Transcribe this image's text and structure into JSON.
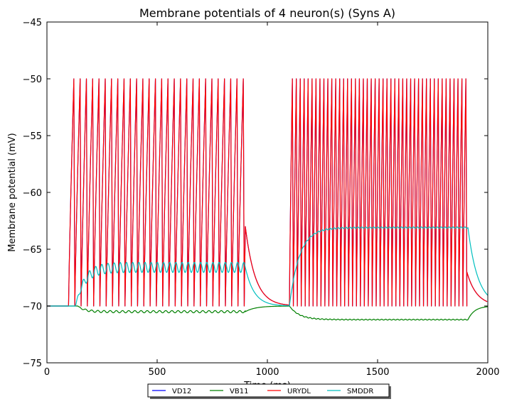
{
  "chart_data": {
    "type": "line",
    "title": "Membrane potentials of 4 neuron(s) (Syns A)",
    "xlabel": "Time (ms)",
    "ylabel": "Membrane potential (mV)",
    "xlim": [
      0,
      2000
    ],
    "ylim": [
      -75,
      -45
    ],
    "x_ticks": [
      0,
      500,
      1000,
      1500,
      2000
    ],
    "y_ticks": [
      -45,
      -50,
      -55,
      -60,
      -65,
      -70,
      -75
    ],
    "x_tick_labels": [
      "0",
      "500",
      "1000",
      "1500",
      "2000"
    ],
    "y_tick_labels": [
      "−45",
      "−50",
      "−55",
      "−60",
      "−65",
      "−70",
      "−75"
    ],
    "grid": false,
    "legend_position": "bottom-center",
    "series": [
      {
        "name": "VD12",
        "color": "#0000ff",
        "baseline_mv": -70,
        "spike_trains": [
          {
            "start_ms": 98,
            "end_ms": 895,
            "count": 28,
            "rise_fraction": 0.85,
            "peak_mv": -50,
            "reset_mv": -70
          },
          {
            "start_ms": 1100,
            "end_ms": 1905,
            "count": 45,
            "rise_fraction": 0.75,
            "peak_mv": -50,
            "reset_mv": -70
          }
        ],
        "after_spike_decays": [
          {
            "t_ms": 900,
            "v_mv": -63,
            "tau_ms": 45
          },
          {
            "t_ms": 1905,
            "v_mv": -67,
            "tau_ms": 45
          }
        ]
      },
      {
        "name": "VB11",
        "color": "#008000",
        "segments": [
          {
            "t0_ms": 0,
            "t1_ms": 140,
            "v0_mv": -70,
            "v1_mv": -70,
            "tau_ms": 1
          },
          {
            "t0_ms": 140,
            "t1_ms": 900,
            "v0_mv": -70,
            "v1_mv": -70.5,
            "tau_ms": 30,
            "ripple_amp_mv": 0.1,
            "ripple_period_ms": 28
          },
          {
            "t0_ms": 900,
            "t1_ms": 1100,
            "v0_mv": -70.5,
            "v1_mv": -70,
            "tau_ms": 45
          },
          {
            "t0_ms": 1100,
            "t1_ms": 1910,
            "v0_mv": -70,
            "v1_mv": -71.2,
            "tau_ms": 45,
            "ripple_amp_mv": 0.04,
            "ripple_period_ms": 18
          },
          {
            "t0_ms": 1910,
            "t1_ms": 2000,
            "v0_mv": -71.2,
            "v1_mv": -70,
            "tau_ms": 30
          }
        ]
      },
      {
        "name": "URYDL",
        "color": "#ff0000",
        "baseline_mv": -70,
        "spike_trains": [
          {
            "start_ms": 98,
            "end_ms": 895,
            "count": 28,
            "rise_fraction": 0.85,
            "peak_mv": -50,
            "reset_mv": -70
          },
          {
            "start_ms": 1100,
            "end_ms": 1905,
            "count": 45,
            "rise_fraction": 0.75,
            "peak_mv": -50,
            "reset_mv": -70
          }
        ],
        "after_spike_decays": [
          {
            "t_ms": 900,
            "v_mv": -63,
            "tau_ms": 45
          },
          {
            "t_ms": 1905,
            "v_mv": -67,
            "tau_ms": 45
          }
        ]
      },
      {
        "name": "SMDDR",
        "color": "#00bfbf",
        "segments": [
          {
            "t0_ms": 0,
            "t1_ms": 130,
            "v0_mv": -70,
            "v1_mv": -70,
            "tau_ms": 1
          },
          {
            "t0_ms": 130,
            "t1_ms": 900,
            "v0_mv": -70,
            "v1_mv": -66.6,
            "tau_ms": 40,
            "ripple_amp_mv": 0.45,
            "ripple_period_ms": 28
          },
          {
            "t0_ms": 900,
            "t1_ms": 1100,
            "v0_mv": -66.6,
            "v1_mv": -70,
            "tau_ms": 40
          },
          {
            "t0_ms": 1100,
            "t1_ms": 1910,
            "v0_mv": -70,
            "v1_mv": -63.1,
            "tau_ms": 45,
            "ripple_amp_mv": 0.06,
            "ripple_period_ms": 18
          },
          {
            "t0_ms": 1910,
            "t1_ms": 2000,
            "v0_mv": -63.1,
            "v1_mv": -70,
            "tau_ms": 45
          }
        ]
      }
    ]
  }
}
